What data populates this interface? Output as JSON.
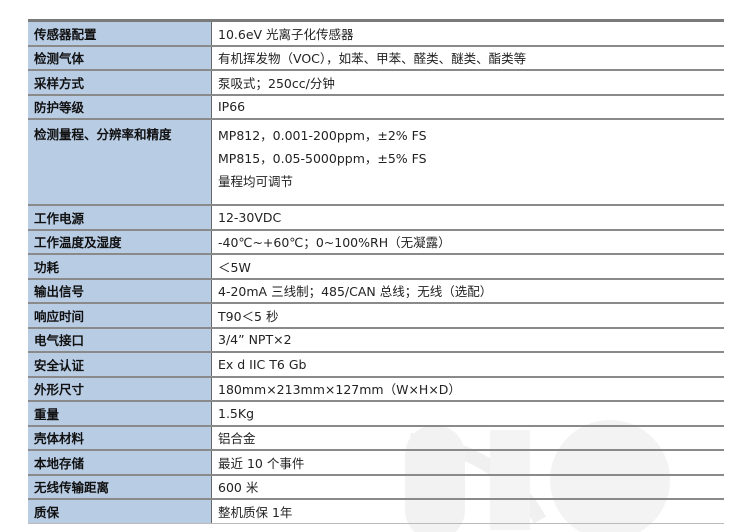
{
  "specs": [
    {
      "label": "传感器配置",
      "value": [
        "10.6eV 光离子化传感器"
      ]
    },
    {
      "label": "检测气体",
      "value": [
        "有机挥发物（VOC），如苯、甲苯、醛类、醚类、酯类等"
      ]
    },
    {
      "label": "采样方式",
      "value": [
        "泵吸式；250cc/分钟"
      ]
    },
    {
      "label": "防护等级",
      "value": [
        "IP66"
      ]
    },
    {
      "label": "检测量程、分辨率和精度",
      "value": [
        "MP812，0.001-200ppm，±2% FS",
        "MP815，0.05-5000ppm，±5% FS",
        "量程均可调节"
      ]
    },
    {
      "label": "工作电源",
      "value": [
        "12-30VDC"
      ]
    },
    {
      "label": "工作温度及湿度",
      "value": [
        "-40℃~+60℃；0~100%RH（无凝露）"
      ]
    },
    {
      "label": "功耗",
      "value": [
        "＜5W"
      ]
    },
    {
      "label": "输出信号",
      "value": [
        "4-20mA 三线制；485/CAN 总线；无线（选配）"
      ]
    },
    {
      "label": "响应时间",
      "value": [
        "T90＜5 秒"
      ]
    },
    {
      "label": "电气接口",
      "value": [
        "3/4”  NPT×2"
      ]
    },
    {
      "label": "安全认证",
      "value": [
        "Ex d  IIC T6 Gb"
      ]
    },
    {
      "label": "外形尺寸",
      "value": [
        "180mm×213mm×127mm（W×H×D）"
      ]
    },
    {
      "label": "重量",
      "value": [
        "1.5Kg"
      ]
    },
    {
      "label": "壳体材料",
      "value": [
        "铝合金"
      ]
    },
    {
      "label": "本地存储",
      "value": [
        "最近 10 个事件"
      ]
    },
    {
      "label": "无线传输距离",
      "value": [
        "600 米"
      ]
    },
    {
      "label": "质保",
      "value": [
        "整机质保 1年"
      ]
    }
  ],
  "colors": {
    "label_bg": "#b8cce4",
    "border": "#8a8a8a"
  }
}
